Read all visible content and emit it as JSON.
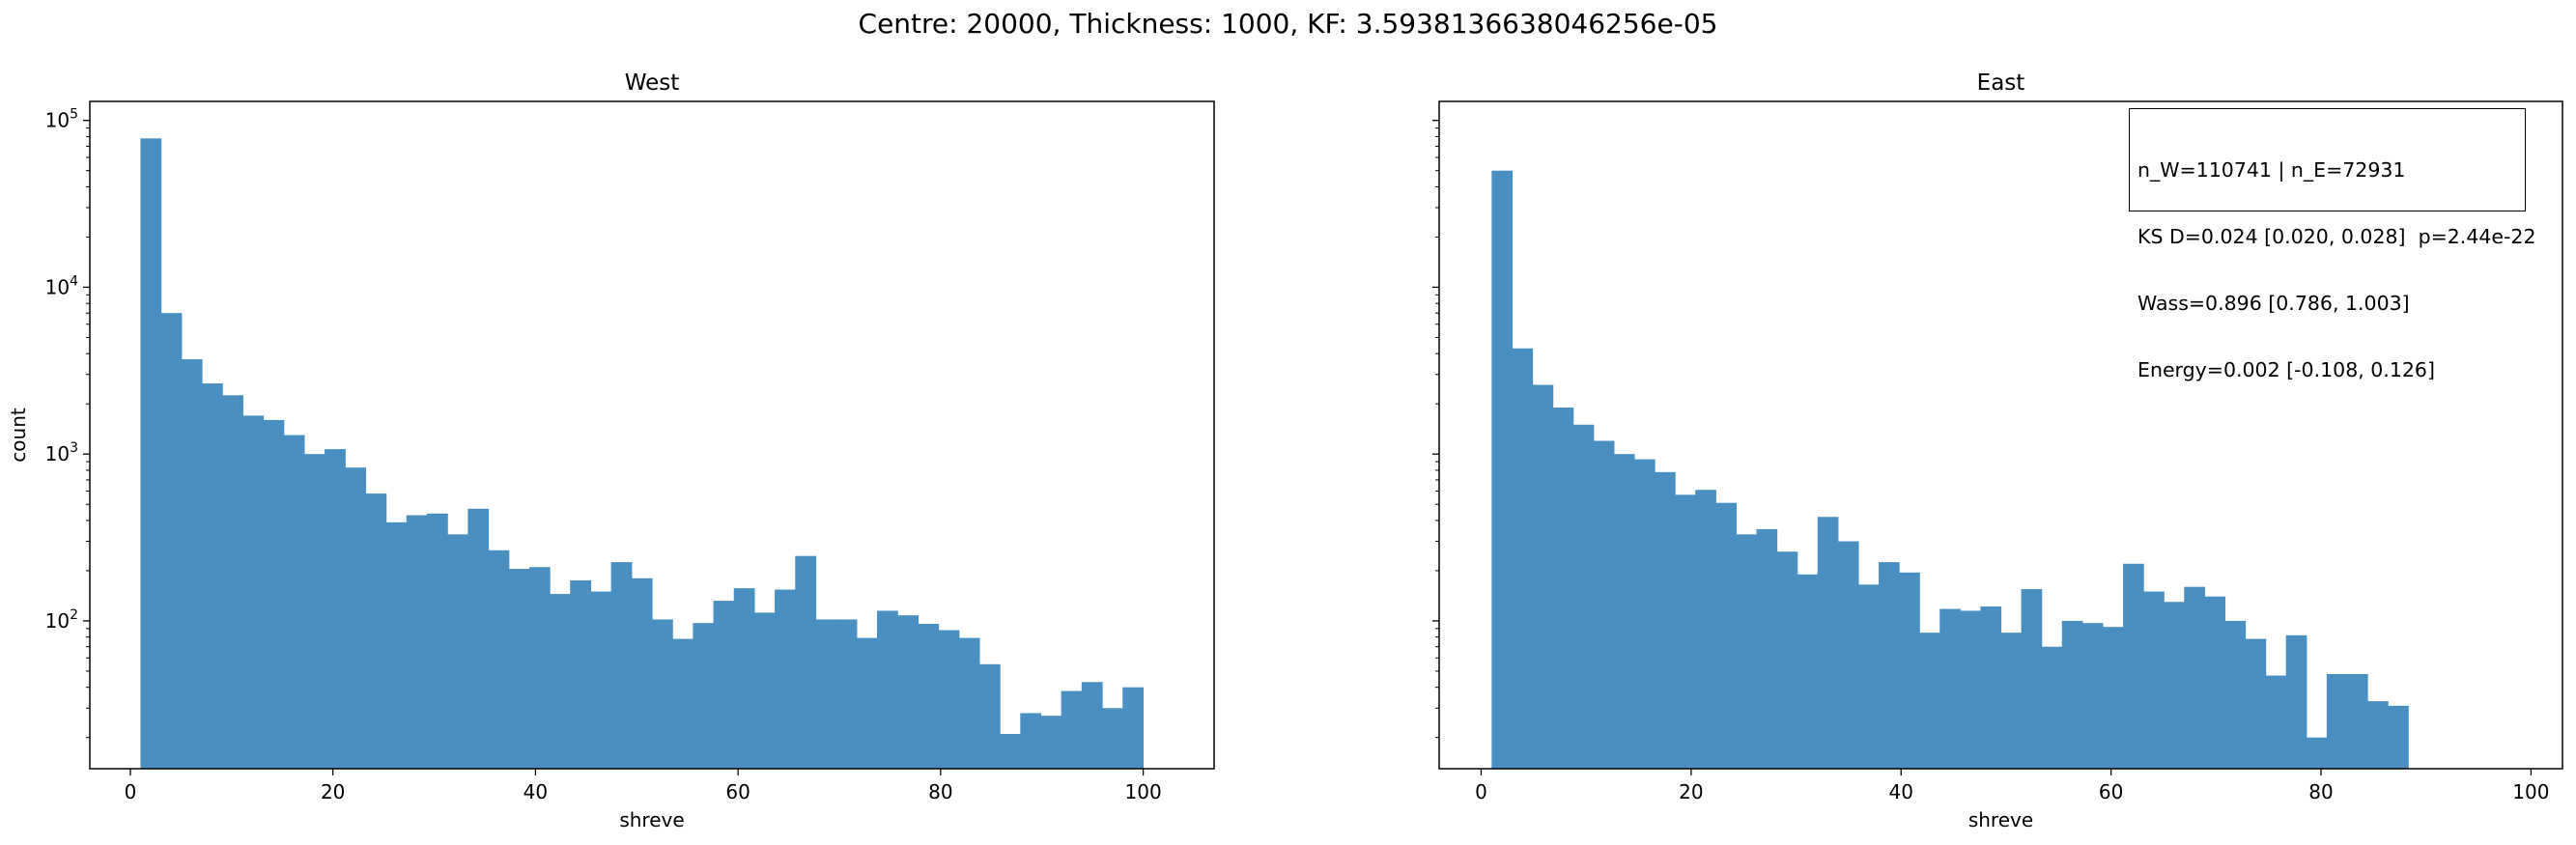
{
  "suptitle": "Centre: 20000, Thickness: 1000, KF: 3.5938136638046256e-05",
  "chart_data": [
    {
      "type": "bar",
      "subtype": "histogram",
      "title": "West",
      "xlabel": "shreve",
      "ylabel": "count",
      "yscale": "log",
      "xlim": [
        -4,
        107
      ],
      "ylim": [
        13,
        130000
      ],
      "grid": false,
      "x_ticks": [
        0,
        20,
        40,
        60,
        80,
        100
      ],
      "y_ticks": [
        {
          "value": 100,
          "base": "10",
          "exp": "2"
        },
        {
          "value": 1000,
          "base": "10",
          "exp": "3"
        },
        {
          "value": 10000,
          "base": "10",
          "exp": "4"
        },
        {
          "value": 100000,
          "base": "10",
          "exp": "5"
        }
      ],
      "bin_edges_start": 1.0,
      "bin_width": 2.02,
      "color": "#4a8fc1",
      "values": [
        78000,
        7000,
        3700,
        2650,
        2250,
        1700,
        1600,
        1300,
        1000,
        1070,
        830,
        580,
        390,
        430,
        440,
        330,
        470,
        265,
        205,
        210,
        145,
        175,
        150,
        225,
        180,
        102,
        78,
        97,
        132,
        157,
        112,
        154,
        245,
        102,
        102,
        79,
        115,
        108,
        96,
        88,
        79,
        55,
        21,
        28,
        27,
        38,
        43,
        30,
        40
      ]
    },
    {
      "type": "bar",
      "subtype": "histogram",
      "title": "East",
      "xlabel": "shreve",
      "ylabel": "",
      "yscale": "log",
      "xlim": [
        -4,
        103
      ],
      "ylim": [
        13,
        130000
      ],
      "grid": false,
      "x_ticks": [
        0,
        20,
        40,
        60,
        80,
        100
      ],
      "bin_edges_start": 1.0,
      "bin_width": 1.94,
      "color": "#4a8fc1",
      "values": [
        50000,
        4300,
        2600,
        1900,
        1500,
        1200,
        1000,
        930,
        780,
        570,
        610,
        510,
        330,
        355,
        260,
        190,
        420,
        300,
        165,
        225,
        195,
        85,
        118,
        115,
        122,
        85,
        155,
        70,
        100,
        97,
        92,
        220,
        150,
        130,
        160,
        140,
        100,
        78,
        47,
        82,
        20,
        48,
        48,
        33,
        31
      ]
    }
  ],
  "stats_box": {
    "line1": "n_W=110741 | n_E=72931",
    "line2": "KS D=0.024 [0.020, 0.028]  p=2.44e-22",
    "line3": "Wass=0.896 [0.786, 1.003]",
    "line4": "Energy=0.002 [-0.108, 0.126]"
  }
}
